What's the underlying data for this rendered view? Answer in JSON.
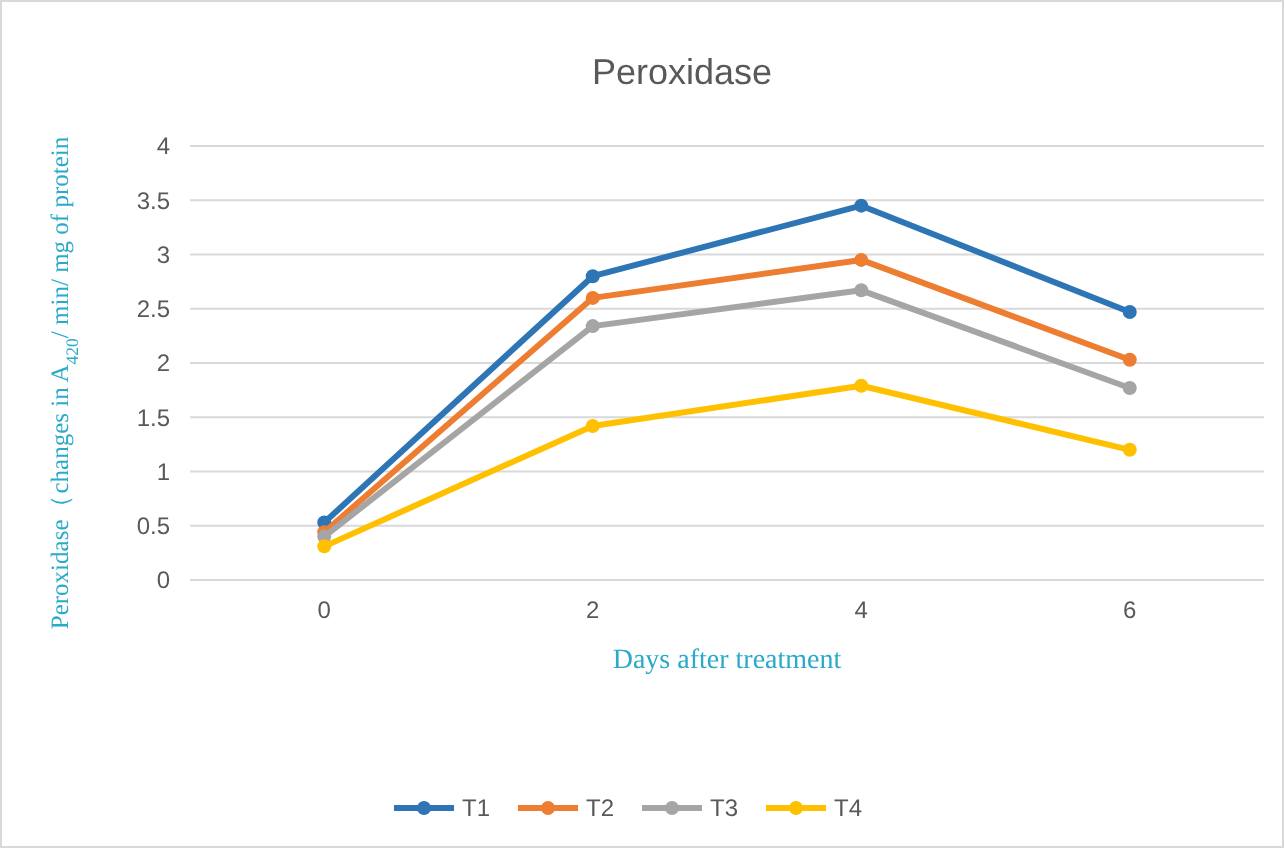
{
  "chart_data": {
    "type": "line",
    "title": "Peroxidase",
    "xlabel": "Days after treatment",
    "ylabel": "Peroxidase（changes in A$_{420}$/ min/ mg of protein",
    "categories": [
      "0",
      "2",
      "4",
      "6"
    ],
    "series": [
      {
        "name": "T1",
        "color": "#2e75b6",
        "values": [
          0.53,
          2.8,
          3.45,
          2.47
        ]
      },
      {
        "name": "T2",
        "color": "#ed7d31",
        "values": [
          0.44,
          2.6,
          2.95,
          2.03
        ]
      },
      {
        "name": "T3",
        "color": "#a5a5a5",
        "values": [
          0.4,
          2.34,
          2.67,
          1.77
        ]
      },
      {
        "name": "T4",
        "color": "#ffc000",
        "values": [
          0.31,
          1.42,
          1.79,
          1.2
        ]
      }
    ],
    "ylim": [
      0,
      4
    ],
    "yticks": [
      0,
      {
        "value": 0.5,
        "label": "0.5"
      },
      1,
      {
        "value": 1.5,
        "label": "1.5"
      },
      2,
      {
        "value": 2.5,
        "label": "2.5"
      },
      3,
      {
        "value": 3.5,
        "label": "3.5"
      },
      4
    ],
    "grid": "y",
    "legend": "bottom",
    "marker": "circle",
    "line_style": "solid"
  }
}
